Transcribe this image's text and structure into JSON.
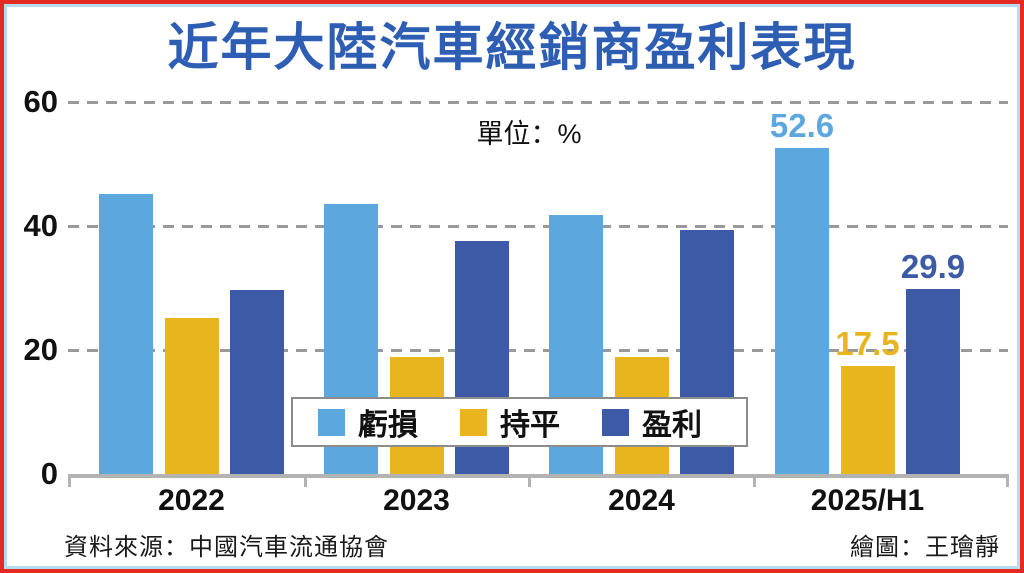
{
  "title": "近年大陸汽車經銷商盈利表現",
  "unit_label": "單位：%",
  "footer": {
    "source": "資料來源：中國汽車流通協會",
    "credit": "繪圖：王璯靜"
  },
  "colors": {
    "title": "#2e5eb3",
    "frame_outer": "#e32b24",
    "frame_inner": "#b4dcf1",
    "gridline": "#999999",
    "axis": "#b3b3b3",
    "text": "#111111"
  },
  "chart_data": {
    "type": "bar",
    "title": "近年大陸汽車經銷商盈利表現",
    "unit": "%",
    "categories": [
      "2022",
      "2023",
      "2024",
      "2025/H1"
    ],
    "series": [
      {
        "key": "loss",
        "name": "虧損",
        "color": "#5ba7de",
        "values": [
          45.2,
          43.5,
          41.7,
          52.6
        ]
      },
      {
        "key": "breakeven",
        "name": "持平",
        "color": "#e8b51e",
        "values": [
          25.1,
          18.9,
          18.9,
          17.5
        ]
      },
      {
        "key": "profit",
        "name": "盈利",
        "color": "#3c5aa6",
        "values": [
          29.7,
          37.6,
          39.4,
          29.9
        ]
      }
    ],
    "ylim": [
      0,
      60
    ],
    "yticks": [
      0,
      20,
      40,
      60
    ],
    "grid": "horizontal-dashed",
    "legend_position": "bottom-center-overlay",
    "data_labels": {
      "category": "2025/H1",
      "values": [
        "52.6",
        "17.5",
        "29.9"
      ]
    }
  }
}
